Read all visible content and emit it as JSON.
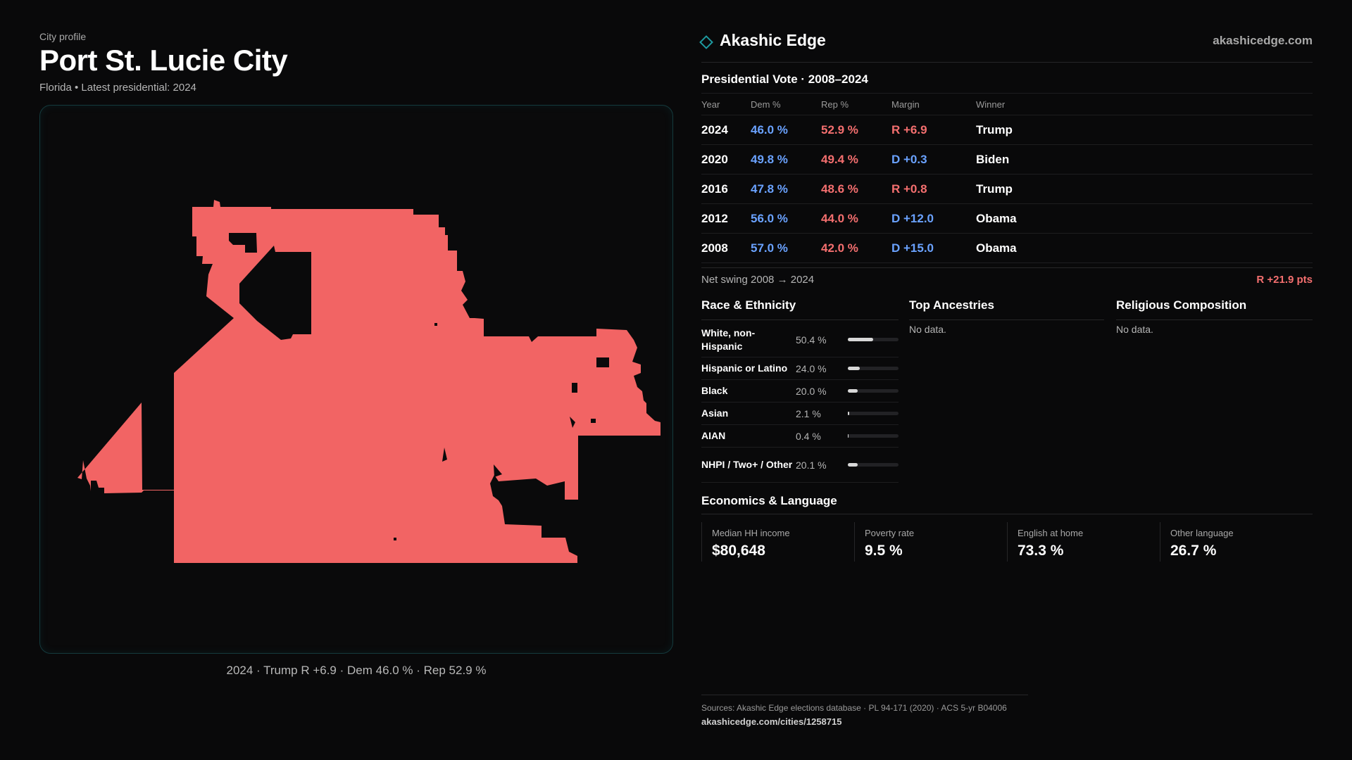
{
  "header": {
    "eyebrow": "City profile",
    "title": "Port St. Lucie City",
    "subtitle": "Florida • Latest presidential: 2024"
  },
  "map": {
    "fill_color": "#f26464",
    "caption": "2024 · Trump R +6.9 · Dem 46.0 % · Rep 52.9 %"
  },
  "brand": {
    "name": "Akashic Edge",
    "icon": "diamond-icon",
    "site": "akashicedge.com"
  },
  "vote": {
    "title": "Presidential Vote · 2008–2024",
    "headers": {
      "year": "Year",
      "dem": "Dem %",
      "rep": "Rep %",
      "margin": "Margin",
      "winner": "Winner"
    },
    "rows": [
      {
        "year": "2024",
        "dem": "46.0 %",
        "rep": "52.9 %",
        "margin": "R +6.9",
        "party": "R",
        "winner": "Trump"
      },
      {
        "year": "2020",
        "dem": "49.8 %",
        "rep": "49.4 %",
        "margin": "D +0.3",
        "party": "D",
        "winner": "Biden"
      },
      {
        "year": "2016",
        "dem": "47.8 %",
        "rep": "48.6 %",
        "margin": "R +0.8",
        "party": "R",
        "winner": "Trump"
      },
      {
        "year": "2012",
        "dem": "56.0 %",
        "rep": "44.0 %",
        "margin": "D +12.0",
        "party": "D",
        "winner": "Obama"
      },
      {
        "year": "2008",
        "dem": "57.0 %",
        "rep": "42.0 %",
        "margin": "D +15.0",
        "party": "D",
        "winner": "Obama"
      }
    ],
    "swing_label": "Net swing 2008 → 2024",
    "swing_value": "R +21.9 pts"
  },
  "race": {
    "title": "Race & Ethnicity",
    "rows": [
      {
        "name": "White, non-Hispanic",
        "pct": "50.4 %",
        "value": 50.4
      },
      {
        "name": "Hispanic or Latino",
        "pct": "24.0 %",
        "value": 24.0
      },
      {
        "name": "Black",
        "pct": "20.0 %",
        "value": 20.0
      },
      {
        "name": "Asian",
        "pct": "2.1 %",
        "value": 2.1
      },
      {
        "name": "AIAN",
        "pct": "0.4 %",
        "value": 0.4
      },
      {
        "name": "NHPI / Two+ / Other",
        "pct": "20.1 %",
        "value": 20.1
      }
    ]
  },
  "ancestries": {
    "title": "Top Ancestries",
    "empty": "No data."
  },
  "religion": {
    "title": "Religious Composition",
    "empty": "No data."
  },
  "economics": {
    "title": "Economics & Language",
    "cells": [
      {
        "label": "Median HH income",
        "value": "$80,648"
      },
      {
        "label": "Poverty rate",
        "value": "9.5 %"
      },
      {
        "label": "English at home",
        "value": "73.3 %"
      },
      {
        "label": "Other language",
        "value": "26.7 %"
      }
    ]
  },
  "footer": {
    "sources": "Sources: Akashic Edge elections database · PL 94-171 (2020) · ACS 5-yr B04006",
    "url": "akashicedge.com/cities/1258715"
  }
}
